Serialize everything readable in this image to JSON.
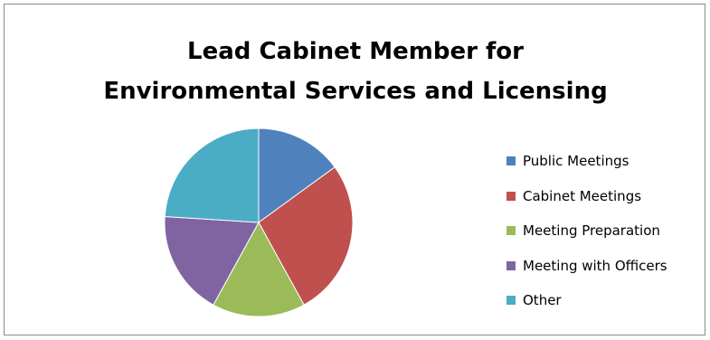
{
  "chart_data": {
    "type": "pie",
    "title_lines": [
      "Lead Cabinet Member for",
      "Environmental Services and Licensing"
    ],
    "categories": [
      "Public Meetings",
      "Cabinet Meetings",
      "Meeting Preparation",
      "Meeting with Officers",
      "Other"
    ],
    "values": [
      15,
      27,
      16,
      18,
      24
    ],
    "colors": [
      "#4f81bd",
      "#c0504d",
      "#9bbb59",
      "#8064a2",
      "#4bacc6"
    ],
    "legend_position": "right",
    "start_angle": "12 o'clock, clockwise"
  }
}
